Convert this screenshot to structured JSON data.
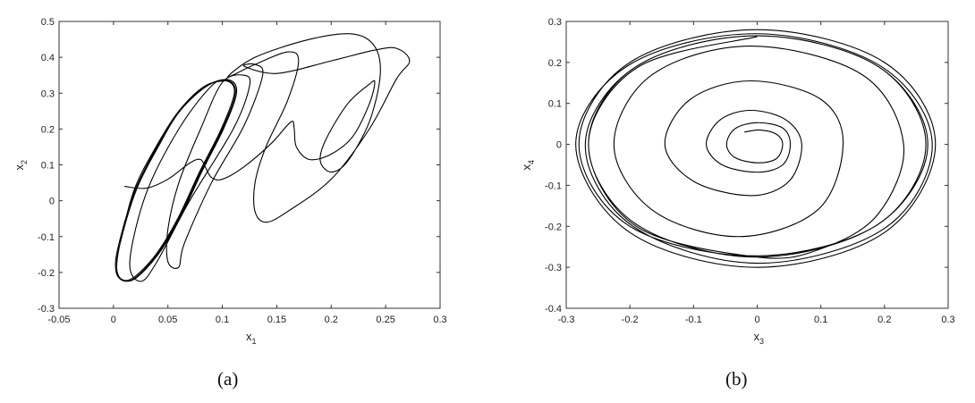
{
  "chart_data": [
    {
      "type": "line",
      "caption": "(a)",
      "xlabel": "x",
      "xlabel_sub": "1",
      "ylabel": "x",
      "ylabel_sub": "2",
      "xlim": [
        -0.05,
        0.3
      ],
      "ylim": [
        -0.3,
        0.5
      ],
      "xticks": [
        -0.05,
        0,
        0.05,
        0.1,
        0.15,
        0.2,
        0.25,
        0.3
      ],
      "xtick_labels": [
        "-0.05",
        "0",
        "0.05",
        "0.1",
        "0.15",
        "0.2",
        "0.25",
        "0.3"
      ],
      "yticks": [
        -0.3,
        -0.2,
        -0.1,
        0,
        0.1,
        0.2,
        0.3,
        0.4,
        0.5
      ],
      "ytick_labels": [
        "-0.3",
        "-0.2",
        "-0.1",
        "0",
        "0.1",
        "0.2",
        "0.3",
        "0.4",
        "0.5"
      ],
      "grid": false,
      "color": "#000000",
      "points": [
        [
          0.01,
          0.04
        ],
        [
          0.03,
          0.035
        ],
        [
          0.05,
          0.06
        ],
        [
          0.07,
          0.105
        ],
        [
          0.08,
          0.115
        ],
        [
          0.085,
          0.09
        ],
        [
          0.09,
          0.065
        ],
        [
          0.1,
          0.06
        ],
        [
          0.12,
          0.095
        ],
        [
          0.145,
          0.16
        ],
        [
          0.163,
          0.22
        ],
        [
          0.166,
          0.2
        ],
        [
          0.168,
          0.15
        ],
        [
          0.18,
          0.115
        ],
        [
          0.2,
          0.13
        ],
        [
          0.22,
          0.18
        ],
        [
          0.235,
          0.27
        ],
        [
          0.24,
          0.33
        ],
        [
          0.235,
          0.325
        ],
        [
          0.215,
          0.27
        ],
        [
          0.195,
          0.17
        ],
        [
          0.19,
          0.11
        ],
        [
          0.2,
          0.08
        ],
        [
          0.215,
          0.11
        ],
        [
          0.235,
          0.22
        ],
        [
          0.245,
          0.35
        ],
        [
          0.24,
          0.43
        ],
        [
          0.22,
          0.465
        ],
        [
          0.18,
          0.45
        ],
        [
          0.13,
          0.4
        ],
        [
          0.105,
          0.345
        ],
        [
          0.13,
          0.38
        ],
        [
          0.16,
          0.415
        ],
        [
          0.17,
          0.39
        ],
        [
          0.16,
          0.28
        ],
        [
          0.14,
          0.15
        ],
        [
          0.13,
          0.05
        ],
        [
          0.13,
          -0.03
        ],
        [
          0.14,
          -0.06
        ],
        [
          0.16,
          -0.03
        ],
        [
          0.2,
          0.06
        ],
        [
          0.235,
          0.2
        ],
        [
          0.26,
          0.34
        ],
        [
          0.272,
          0.39
        ],
        [
          0.26,
          0.425
        ],
        [
          0.24,
          0.42
        ],
        [
          0.2,
          0.39
        ],
        [
          0.15,
          0.355
        ],
        [
          0.12,
          0.375
        ],
        [
          0.13,
          0.38
        ],
        [
          0.137,
          0.35
        ],
        [
          0.12,
          0.21
        ],
        [
          0.09,
          0.05
        ],
        [
          0.065,
          -0.12
        ],
        [
          0.06,
          -0.185
        ],
        [
          0.05,
          -0.17
        ],
        [
          0.05,
          -0.08
        ],
        [
          0.06,
          0.05
        ],
        [
          0.08,
          0.2
        ],
        [
          0.1,
          0.33
        ],
        [
          0.12,
          0.35
        ],
        [
          0.125,
          0.32
        ],
        [
          0.11,
          0.2
        ],
        [
          0.07,
          0.0
        ],
        [
          0.04,
          -0.17
        ],
        [
          0.025,
          -0.225
        ],
        [
          0.015,
          -0.17
        ],
        [
          0.03,
          0.02
        ],
        [
          0.06,
          0.2
        ],
        [
          0.09,
          0.32
        ],
        [
          0.105,
          0.335
        ],
        [
          0.112,
          0.3
        ],
        [
          0.1,
          0.2
        ],
        [
          0.08,
          0.08
        ],
        [
          0.06,
          -0.05
        ],
        [
          0.04,
          -0.15
        ],
        [
          0.02,
          -0.215
        ],
        [
          0.008,
          -0.222
        ],
        [
          0.002,
          -0.19
        ],
        [
          0.005,
          -0.12
        ],
        [
          0.02,
          0.03
        ],
        [
          0.04,
          0.15
        ],
        [
          0.06,
          0.25
        ],
        [
          0.085,
          0.32
        ],
        [
          0.106,
          0.337
        ],
        [
          0.113,
          0.3
        ],
        [
          0.101,
          0.2
        ],
        [
          0.081,
          0.08
        ],
        [
          0.061,
          -0.05
        ],
        [
          0.041,
          -0.15
        ],
        [
          0.021,
          -0.215
        ],
        [
          0.009,
          -0.222
        ],
        [
          0.003,
          -0.19
        ],
        [
          0.006,
          -0.12
        ],
        [
          0.021,
          0.03
        ],
        [
          0.041,
          0.15
        ],
        [
          0.061,
          0.25
        ],
        [
          0.086,
          0.32
        ],
        [
          0.104,
          0.334
        ],
        [
          0.111,
          0.3
        ],
        [
          0.099,
          0.2
        ],
        [
          0.079,
          0.08
        ],
        [
          0.059,
          -0.05
        ],
        [
          0.039,
          -0.15
        ],
        [
          0.019,
          -0.213
        ],
        [
          0.008,
          -0.22
        ],
        [
          0.003,
          -0.19
        ],
        [
          0.006,
          -0.12
        ],
        [
          0.019,
          0.03
        ],
        [
          0.039,
          0.15
        ],
        [
          0.06,
          0.25
        ],
        [
          0.084,
          0.32
        ],
        [
          0.105,
          0.336
        ]
      ]
    },
    {
      "type": "line",
      "caption": "(b)",
      "xlabel": "x",
      "xlabel_sub": "3",
      "ylabel": "x",
      "ylabel_sub": "4",
      "xlim": [
        -0.3,
        0.3
      ],
      "ylim": [
        -0.4,
        0.3
      ],
      "xticks": [
        -0.3,
        -0.2,
        -0.1,
        0,
        0.1,
        0.2,
        0.3
      ],
      "xtick_labels": [
        "-0.3",
        "-0.2",
        "-0.1",
        "0",
        "0.1",
        "0.2",
        "0.3"
      ],
      "yticks": [
        -0.4,
        -0.3,
        -0.2,
        -0.1,
        0,
        0.1,
        0.2,
        0.3
      ],
      "ytick_labels": [
        "-0.4",
        "-0.3",
        "-0.2",
        "-0.1",
        "0",
        "0.1",
        "0.2",
        "0.3"
      ],
      "grid": false,
      "color": "#000000",
      "points": [
        [
          -0.02,
          0.03
        ],
        [
          0.005,
          0.035
        ],
        [
          0.03,
          0.025
        ],
        [
          0.04,
          0
        ],
        [
          0.03,
          -0.035
        ],
        [
          0,
          -0.045
        ],
        [
          -0.035,
          -0.032
        ],
        [
          -0.048,
          0
        ],
        [
          -0.035,
          0.038
        ],
        [
          0,
          0.053
        ],
        [
          0.04,
          0.04
        ],
        [
          0.052,
          0
        ],
        [
          0.04,
          -0.05
        ],
        [
          0,
          -0.068
        ],
        [
          -0.055,
          -0.05
        ],
        [
          -0.08,
          0
        ],
        [
          -0.058,
          0.06
        ],
        [
          -0.01,
          0.083
        ],
        [
          0.045,
          0.06
        ],
        [
          0.07,
          0
        ],
        [
          0.05,
          -0.09
        ],
        [
          -0.01,
          -0.125
        ],
        [
          -0.1,
          -0.09
        ],
        [
          -0.145,
          0
        ],
        [
          -0.105,
          0.11
        ],
        [
          -0.01,
          0.155
        ],
        [
          0.1,
          0.11
        ],
        [
          0.135,
          0
        ],
        [
          0.095,
          -0.16
        ],
        [
          -0.03,
          -0.225
        ],
        [
          -0.165,
          -0.16
        ],
        [
          -0.225,
          0
        ],
        [
          -0.165,
          0.17
        ],
        [
          -0.01,
          0.24
        ],
        [
          0.165,
          0.17
        ],
        [
          0.23,
          0
        ],
        [
          0.19,
          -0.17
        ],
        [
          0.1,
          -0.255
        ],
        [
          0,
          -0.275
        ],
        [
          -0.19,
          -0.2
        ],
        [
          -0.265,
          0
        ],
        [
          -0.19,
          0.19
        ],
        [
          0,
          0.265
        ],
        [
          0.19,
          0.19
        ],
        [
          0.265,
          0
        ],
        [
          0.19,
          -0.195
        ],
        [
          0,
          -0.272
        ],
        [
          -0.2,
          -0.2
        ],
        [
          -0.28,
          0
        ],
        [
          -0.2,
          0.2
        ],
        [
          0,
          0.28
        ],
        [
          0.2,
          0.2
        ],
        [
          0.28,
          0
        ],
        [
          0.2,
          -0.215
        ],
        [
          0,
          -0.3
        ],
        [
          -0.2,
          -0.215
        ],
        [
          -0.285,
          0
        ],
        [
          -0.2,
          0.195
        ],
        [
          0,
          0.27
        ],
        [
          0.195,
          0.19
        ],
        [
          0.275,
          0
        ],
        [
          0.2,
          -0.205
        ],
        [
          0,
          -0.29
        ],
        [
          -0.195,
          -0.2
        ],
        [
          -0.27,
          0
        ],
        [
          -0.19,
          0.19
        ],
        [
          0,
          0.265
        ],
        [
          0.19,
          0.19
        ],
        [
          0.268,
          0
        ],
        [
          0.19,
          -0.195
        ],
        [
          0,
          -0.275
        ],
        [
          -0.19,
          -0.195
        ],
        [
          -0.265,
          0
        ],
        [
          -0.188,
          0.188
        ],
        [
          0,
          0.263
        ]
      ]
    }
  ]
}
